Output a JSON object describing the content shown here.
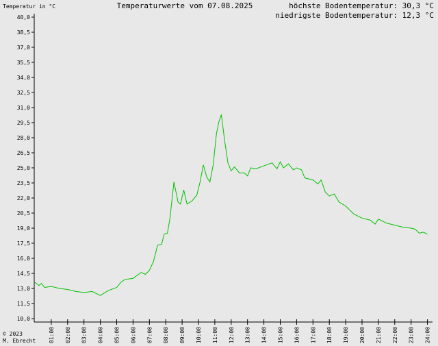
{
  "chart_data": {
    "type": "line",
    "title": "Temperaturwerte vom 07.08.2025",
    "y_label": "Temperatur in °C",
    "max_text": "höchste Bodentemperatur: 30,3 °C",
    "min_text": "niedrigste Bodentemperatur: 12,3 °C",
    "copyright": "© 2023",
    "author": "M. Ebrecht",
    "color": "#00c000",
    "x": [
      0,
      0.25,
      0.4,
      0.6,
      1,
      1.25,
      1.5,
      2,
      2.5,
      3,
      3.5,
      4,
      4.2,
      4.5,
      5,
      5.25,
      5.5,
      6,
      6.5,
      6.75,
      7,
      7.25,
      7.5,
      7.75,
      7.9,
      8.1,
      8.25,
      8.5,
      8.75,
      8.9,
      9.1,
      9.3,
      9.6,
      9.9,
      10.1,
      10.3,
      10.5,
      10.7,
      10.9,
      11.1,
      11.25,
      11.4,
      11.6,
      11.8,
      12,
      12.2,
      12.5,
      12.8,
      13,
      13.2,
      13.5,
      14,
      14.5,
      14.8,
      15,
      15.2,
      15.5,
      15.8,
      16,
      16.3,
      16.5,
      17,
      17.3,
      17.5,
      17.75,
      18,
      18.3,
      18.6,
      19,
      19.5,
      20,
      20.5,
      20.8,
      21,
      21.5,
      22,
      22.5,
      23,
      23.25,
      23.5,
      23.75,
      24
    ],
    "values": [
      13.6,
      13.3,
      13.5,
      13.1,
      13.2,
      13.1,
      13.0,
      12.9,
      12.7,
      12.6,
      12.7,
      12.3,
      12.5,
      12.8,
      13.1,
      13.6,
      13.9,
      14.0,
      14.6,
      14.4,
      14.8,
      15.7,
      17.3,
      17.4,
      18.4,
      18.5,
      19.9,
      23.6,
      21.6,
      21.4,
      22.8,
      21.4,
      21.7,
      22.3,
      23.6,
      25.3,
      24.1,
      23.6,
      25.3,
      28.4,
      29.6,
      30.3,
      27.7,
      25.5,
      24.7,
      25.1,
      24.5,
      24.5,
      24.2,
      25.0,
      24.9,
      25.2,
      25.5,
      24.9,
      25.6,
      25.0,
      25.4,
      24.8,
      25.0,
      24.8,
      24.0,
      23.8,
      23.4,
      23.8,
      22.6,
      22.2,
      22.4,
      21.6,
      21.2,
      20.4,
      20.0,
      19.8,
      19.4,
      19.9,
      19.5,
      19.3,
      19.1,
      19.0,
      18.9,
      18.5,
      18.6,
      18.4
    ],
    "xlim": [
      0,
      24
    ],
    "xticks": [
      {
        "value": 1,
        "label": "01:00"
      },
      {
        "value": 2,
        "label": "02:00"
      },
      {
        "value": 3,
        "label": "03:00"
      },
      {
        "value": 4,
        "label": "04:00"
      },
      {
        "value": 5,
        "label": "05:00"
      },
      {
        "value": 6,
        "label": "06:00"
      },
      {
        "value": 7,
        "label": "07:00"
      },
      {
        "value": 8,
        "label": "08:00"
      },
      {
        "value": 9,
        "label": "09:00"
      },
      {
        "value": 10,
        "label": "10:00"
      },
      {
        "value": 11,
        "label": "11:00"
      },
      {
        "value": 12,
        "label": "12:00"
      },
      {
        "value": 13,
        "label": "13:00"
      },
      {
        "value": 14,
        "label": "14:00"
      },
      {
        "value": 15,
        "label": "15:00"
      },
      {
        "value": 16,
        "label": "16:00"
      },
      {
        "value": 17,
        "label": "17:00"
      },
      {
        "value": 18,
        "label": "18:00"
      },
      {
        "value": 19,
        "label": "19:00"
      },
      {
        "value": 20,
        "label": "20:00"
      },
      {
        "value": 21,
        "label": "21:00"
      },
      {
        "value": 22,
        "label": "22:00"
      },
      {
        "value": 23,
        "label": "23:00"
      },
      {
        "value": 24,
        "label": "24:00"
      }
    ],
    "ylim": [
      10,
      40
    ],
    "yticks": [
      {
        "value": 10,
        "label": "10,0"
      },
      {
        "value": 11.5,
        "label": "11,5"
      },
      {
        "value": 13,
        "label": "13,0"
      },
      {
        "value": 14.5,
        "label": "14,5"
      },
      {
        "value": 16,
        "label": "16,0"
      },
      {
        "value": 17.5,
        "label": "17,5"
      },
      {
        "value": 19,
        "label": "19,0"
      },
      {
        "value": 20.5,
        "label": "20,5"
      },
      {
        "value": 22,
        "label": "22,0"
      },
      {
        "value": 23.5,
        "label": "23,5"
      },
      {
        "value": 25,
        "label": "25,0"
      },
      {
        "value": 26.5,
        "label": "26,5"
      },
      {
        "value": 28,
        "label": "28,0"
      },
      {
        "value": 29.5,
        "label": "29,5"
      },
      {
        "value": 31,
        "label": "31,0"
      },
      {
        "value": 32.5,
        "label": "32,5"
      },
      {
        "value": 34,
        "label": "34,0"
      },
      {
        "value": 35.5,
        "label": "35,5"
      },
      {
        "value": 37,
        "label": "37,0"
      },
      {
        "value": 38.5,
        "label": "38,5"
      },
      {
        "value": 40,
        "label": "40,0"
      }
    ]
  }
}
